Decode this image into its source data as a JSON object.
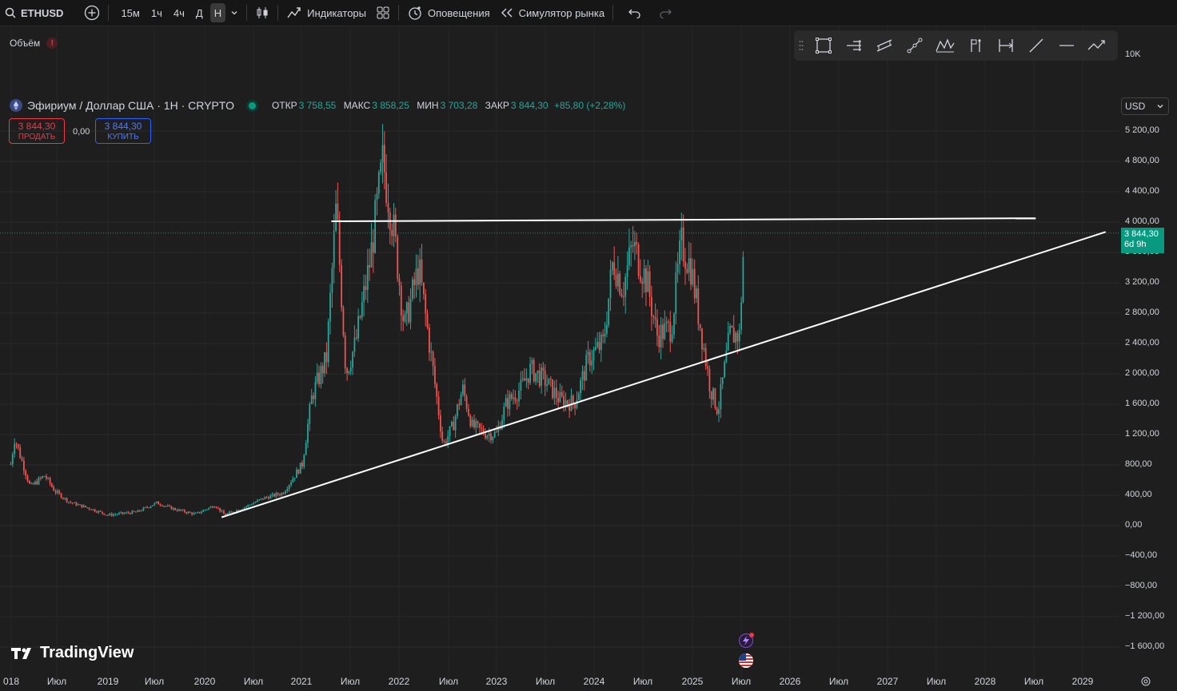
{
  "toolbar": {
    "symbol": "ETHUSD",
    "intervals": [
      {
        "label": "15м",
        "active": false
      },
      {
        "label": "1ч",
        "active": false
      },
      {
        "label": "4ч",
        "active": false
      },
      {
        "label": "Д",
        "active": false
      },
      {
        "label": "Н",
        "active": true
      }
    ],
    "indicators_label": "Индикаторы",
    "alerts_label": "Оповещения",
    "replay_label": "Симулятор рынка"
  },
  "volume_label": "Объём",
  "legend": {
    "title": "Эфириум / Доллар США · 1Н · CRYPTO",
    "open_label": "ОТКР",
    "open": "3 758,55",
    "high_label": "МАКС",
    "high": "3 858,25",
    "low_label": "МИН",
    "low": "3 703,28",
    "close_label": "ЗАКР",
    "close": "3 844,30",
    "change": "+85,80 (+2,28%)"
  },
  "trade": {
    "sell_price": "3 844,30",
    "sell_label": "ПРОДАТЬ",
    "spread": "0,00",
    "buy_price": "3 844,30",
    "buy_label": "КУПИТЬ"
  },
  "currency": "USD",
  "price_tag": {
    "price": "3 844,30",
    "countdown": "6d 9h"
  },
  "brand": "TradingView",
  "colors": {
    "up": "#26a69a",
    "down": "#ef5350",
    "background": "#1e1e1e",
    "price_tag": "#089981"
  },
  "chart_data": {
    "type": "candlestick",
    "symbol": "ETHUSD",
    "interval": "1W",
    "y_ticks": [
      "10K",
      "5 200,00",
      "4 800,00",
      "4 400,00",
      "4 000,00",
      "3 600,00",
      "3 200,00",
      "2 800,00",
      "2 400,00",
      "2 000,00",
      "1 600,00",
      "1 200,00",
      "800,00",
      "400,00",
      "0,00",
      "−400,00",
      "−800,00",
      "−1 200,00",
      "−1 600,00"
    ],
    "x_ticks": [
      "018",
      "Июл",
      "2019",
      "Июл",
      "2020",
      "Июл",
      "2021",
      "Июл",
      "2022",
      "Июл",
      "2023",
      "Июл",
      "2024",
      "Июл",
      "2025",
      "Июл",
      "2026",
      "Июл",
      "2027",
      "Июл",
      "2028",
      "Июл",
      "2029"
    ],
    "ylim": [
      -1700,
      5350
    ],
    "xlim": [
      2018.0,
      2029.55
    ],
    "last_price": 3844.3,
    "price_path": [
      [
        2018.0,
        800
      ],
      [
        2018.04,
        1150
      ],
      [
        2018.1,
        900
      ],
      [
        2018.2,
        500
      ],
      [
        2018.35,
        650
      ],
      [
        2018.45,
        450
      ],
      [
        2018.6,
        300
      ],
      [
        2018.8,
        220
      ],
      [
        2019.0,
        130
      ],
      [
        2019.3,
        170
      ],
      [
        2019.5,
        290
      ],
      [
        2019.7,
        200
      ],
      [
        2019.9,
        140
      ],
      [
        2020.1,
        260
      ],
      [
        2020.2,
        130
      ],
      [
        2020.4,
        230
      ],
      [
        2020.6,
        350
      ],
      [
        2020.8,
        420
      ],
      [
        2021.0,
        800
      ],
      [
        2021.1,
        1700
      ],
      [
        2021.25,
        2200
      ],
      [
        2021.35,
        4200
      ],
      [
        2021.45,
        2000
      ],
      [
        2021.55,
        2400
      ],
      [
        2021.7,
        3500
      ],
      [
        2021.83,
        4800
      ],
      [
        2021.95,
        3800
      ],
      [
        2022.05,
        2600
      ],
      [
        2022.2,
        3400
      ],
      [
        2022.35,
        2000
      ],
      [
        2022.45,
        1050
      ],
      [
        2022.55,
        1300
      ],
      [
        2022.65,
        1800
      ],
      [
        2022.75,
        1300
      ],
      [
        2022.9,
        1200
      ],
      [
        2023.0,
        1200
      ],
      [
        2023.1,
        1600
      ],
      [
        2023.25,
        1800
      ],
      [
        2023.35,
        2050
      ],
      [
        2023.5,
        1900
      ],
      [
        2023.65,
        1650
      ],
      [
        2023.8,
        1600
      ],
      [
        2023.95,
        2200
      ],
      [
        2024.1,
        2400
      ],
      [
        2024.2,
        3500
      ],
      [
        2024.3,
        3100
      ],
      [
        2024.4,
        3700
      ],
      [
        2024.55,
        3200
      ],
      [
        2024.65,
        2500
      ],
      [
        2024.8,
        2600
      ],
      [
        2024.9,
        3700
      ],
      [
        2025.0,
        3400
      ],
      [
        2025.1,
        2600
      ],
      [
        2025.2,
        1800
      ],
      [
        2025.28,
        1500
      ],
      [
        2025.4,
        2500
      ],
      [
        2025.5,
        2500
      ],
      [
        2025.55,
        3844
      ]
    ],
    "trendlines": [
      {
        "points": [
          [
            2021.3,
            4000
          ],
          [
            2028.55,
            4040
          ]
        ],
        "color": "#ffffff"
      },
      {
        "points": [
          [
            2020.17,
            100
          ],
          [
            2029.27,
            3860
          ]
        ],
        "color": "#ffffff"
      }
    ]
  }
}
